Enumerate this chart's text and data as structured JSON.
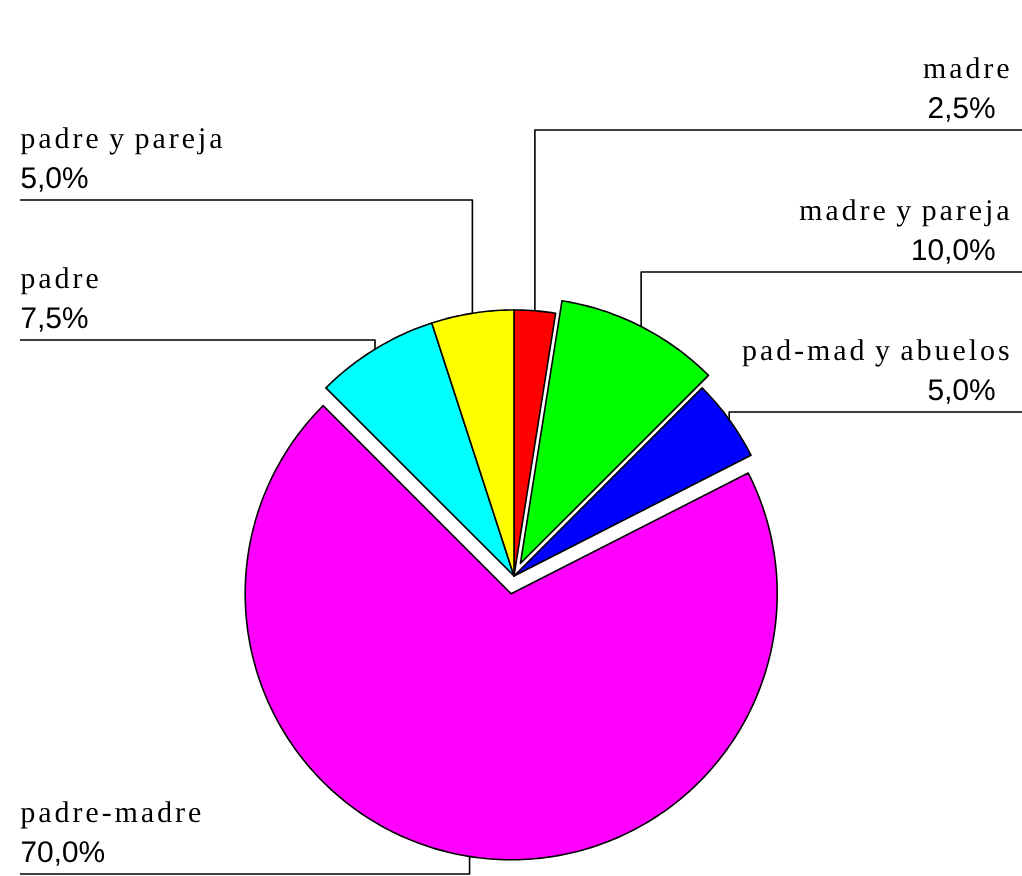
{
  "chart_data": {
    "type": "pie",
    "categories": [
      "madre",
      "madre y pareja",
      "pad-mad y abuelos",
      "padre-madre",
      "padre",
      "padre y pareja"
    ],
    "values": [
      2.5,
      10,
      5,
      70,
      7.5,
      5
    ],
    "colors": [
      "#ff0000",
      "#00ff00",
      "#0000ff",
      "#ff00ff",
      "#00ffff",
      "#ffff00"
    ],
    "value_labels": [
      "2,5%",
      "10,0%",
      "5,0%",
      "70,0%",
      "7,5%",
      "5,0%"
    ]
  }
}
